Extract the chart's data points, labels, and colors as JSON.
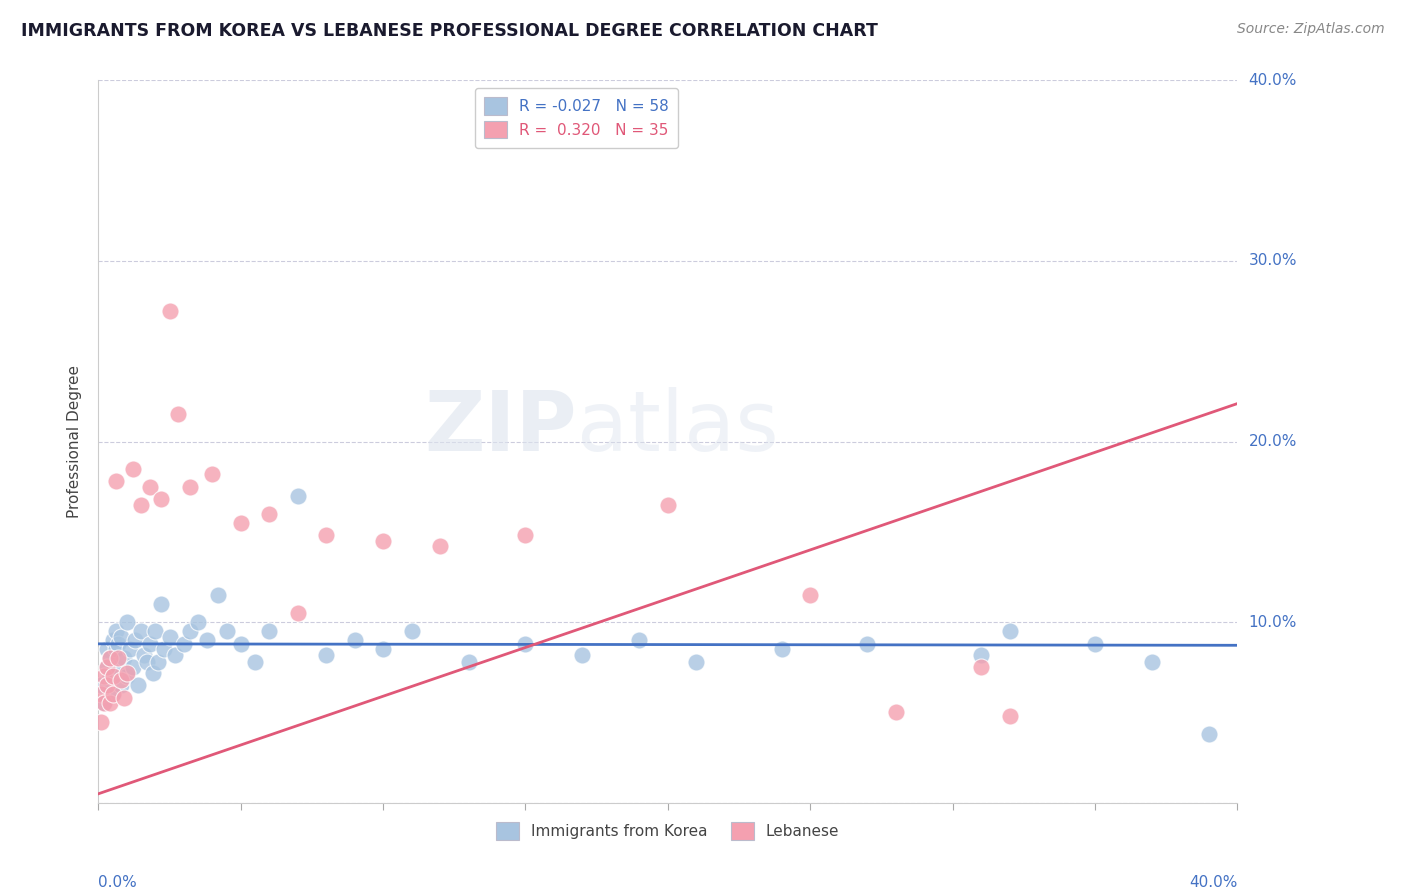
{
  "title": "IMMIGRANTS FROM KOREA VS LEBANESE PROFESSIONAL DEGREE CORRELATION CHART",
  "source": "Source: ZipAtlas.com",
  "ylabel": "Professional Degree",
  "legend_label_blue": "Immigrants from Korea",
  "legend_label_pink": "Lebanese",
  "r_blue": -0.027,
  "n_blue": 58,
  "r_pink": 0.32,
  "n_pink": 35,
  "blue_line_intercept": 0.088,
  "blue_line_slope": -0.002,
  "pink_line_intercept": 0.005,
  "pink_line_slope": 0.54,
  "blue_color": "#a8c4e0",
  "blue_line_color": "#4472c4",
  "pink_color": "#f4a0b0",
  "pink_line_color": "#e05878",
  "right_axis_color": "#4472c4",
  "title_color": "#1a1a2e",
  "source_color": "#888888",
  "background_color": "#ffffff",
  "grid_color": "#ccccdd",
  "blue_x": [
    0.001,
    0.002,
    0.003,
    0.003,
    0.004,
    0.004,
    0.005,
    0.005,
    0.006,
    0.006,
    0.007,
    0.007,
    0.008,
    0.008,
    0.009,
    0.01,
    0.01,
    0.011,
    0.012,
    0.013,
    0.014,
    0.015,
    0.016,
    0.017,
    0.018,
    0.019,
    0.02,
    0.021,
    0.022,
    0.023,
    0.025,
    0.027,
    0.03,
    0.032,
    0.035,
    0.038,
    0.042,
    0.045,
    0.05,
    0.055,
    0.06,
    0.07,
    0.08,
    0.09,
    0.1,
    0.11,
    0.13,
    0.15,
    0.17,
    0.19,
    0.21,
    0.24,
    0.27,
    0.31,
    0.32,
    0.35,
    0.37,
    0.39
  ],
  "blue_y": [
    0.065,
    0.055,
    0.075,
    0.085,
    0.08,
    0.07,
    0.09,
    0.06,
    0.085,
    0.095,
    0.075,
    0.088,
    0.065,
    0.092,
    0.08,
    0.07,
    0.1,
    0.085,
    0.075,
    0.09,
    0.065,
    0.095,
    0.082,
    0.078,
    0.088,
    0.072,
    0.095,
    0.078,
    0.11,
    0.085,
    0.092,
    0.082,
    0.088,
    0.095,
    0.1,
    0.09,
    0.115,
    0.095,
    0.088,
    0.078,
    0.095,
    0.17,
    0.082,
    0.09,
    0.085,
    0.095,
    0.078,
    0.088,
    0.082,
    0.09,
    0.078,
    0.085,
    0.088,
    0.082,
    0.095,
    0.088,
    0.078,
    0.038
  ],
  "pink_x": [
    0.001,
    0.001,
    0.002,
    0.002,
    0.003,
    0.003,
    0.004,
    0.004,
    0.005,
    0.005,
    0.006,
    0.007,
    0.008,
    0.009,
    0.01,
    0.012,
    0.015,
    0.018,
    0.022,
    0.025,
    0.028,
    0.032,
    0.04,
    0.05,
    0.06,
    0.07,
    0.08,
    0.1,
    0.12,
    0.15,
    0.2,
    0.25,
    0.28,
    0.31,
    0.32
  ],
  "pink_y": [
    0.06,
    0.045,
    0.07,
    0.055,
    0.065,
    0.075,
    0.055,
    0.08,
    0.06,
    0.07,
    0.178,
    0.08,
    0.068,
    0.058,
    0.072,
    0.185,
    0.165,
    0.175,
    0.168,
    0.272,
    0.215,
    0.175,
    0.182,
    0.155,
    0.16,
    0.105,
    0.148,
    0.145,
    0.142,
    0.148,
    0.165,
    0.115,
    0.05,
    0.075,
    0.048
  ]
}
